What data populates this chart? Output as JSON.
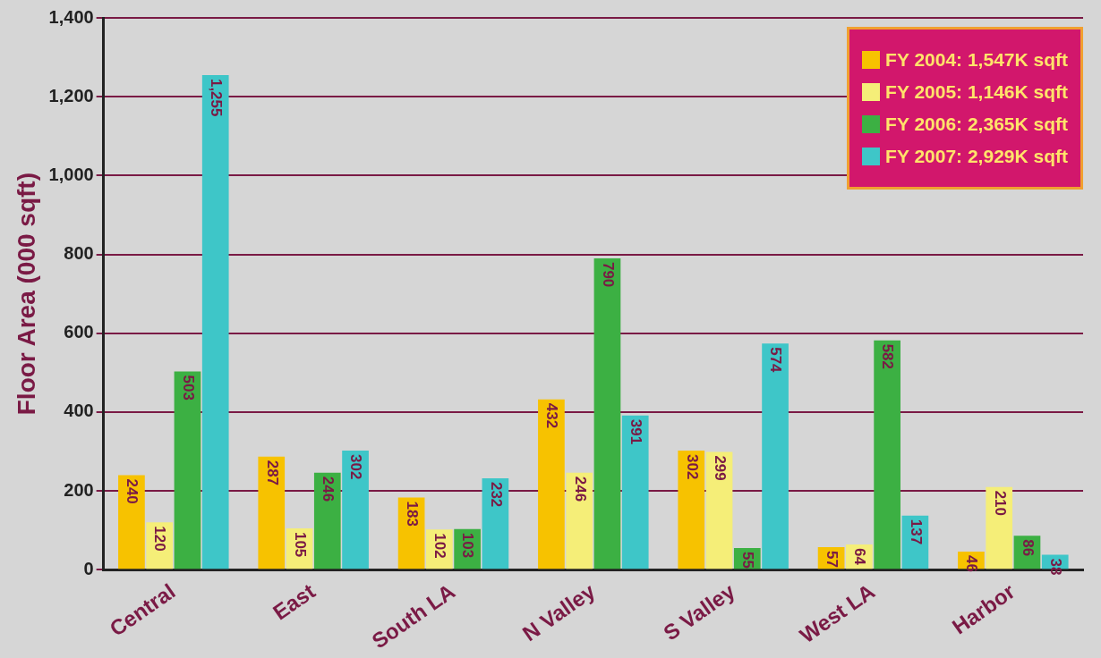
{
  "chart_data": {
    "type": "bar",
    "ylabel": "Floor Area (000 sqft)",
    "categories": [
      "Central",
      "East",
      "South LA",
      "N Valley",
      "S Valley",
      "West LA",
      "Harbor"
    ],
    "series": [
      {
        "name": "FY 2004: 1,547K sqft",
        "color": "#f7c200",
        "values": [
          240,
          287,
          183,
          432,
          302,
          57,
          46
        ],
        "value_labels": [
          "240",
          "287",
          "183",
          "432",
          "302",
          "57",
          "46"
        ]
      },
      {
        "name": "FY 2005: 1,146K sqft",
        "color": "#f5ee78",
        "values": [
          120,
          105,
          102,
          246,
          299,
          64,
          210
        ],
        "value_labels": [
          "120",
          "105",
          "102",
          "246",
          "299",
          "64",
          "210"
        ]
      },
      {
        "name": "FY 2006: 2,365K sqft",
        "color": "#3cb043",
        "values": [
          503,
          246,
          103,
          790,
          55,
          582,
          86
        ],
        "value_labels": [
          "503",
          "246",
          "103",
          "790",
          "55",
          "582",
          "86"
        ]
      },
      {
        "name": "FY 2007: 2,929K sqft",
        "color": "#3ec6c8",
        "values": [
          1255,
          302,
          232,
          391,
          574,
          137,
          38
        ],
        "value_labels": [
          "1,255",
          "302",
          "232",
          "391",
          "574",
          "137",
          "38"
        ]
      }
    ],
    "ylim": [
      0,
      1400
    ],
    "yticks": [
      0,
      200,
      400,
      600,
      800,
      {
        "value": 1000,
        "label": "1,000"
      },
      {
        "value": 1200,
        "label": "1,200"
      },
      {
        "value": 1400,
        "label": "1,400"
      }
    ],
    "grid": "y",
    "legend": "top right"
  }
}
